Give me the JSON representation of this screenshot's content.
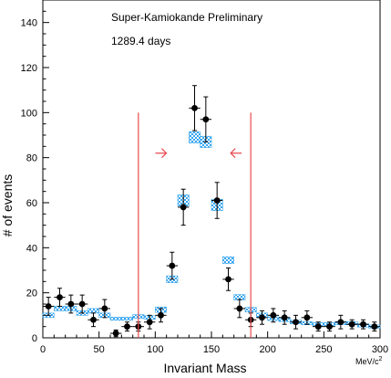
{
  "chart_data": {
    "type": "scatter",
    "title": "",
    "annotations": {
      "experiment": "Super-Kamiokande Preliminary",
      "exposure": "1289.4 days"
    },
    "xlabel": "Invariant Mass",
    "xunit_main": "MeV/c",
    "xunit_sup": "2",
    "ylabel": "# of events",
    "xlim": [
      0,
      300
    ],
    "ylim": [
      0,
      150
    ],
    "xticks": [
      0,
      50,
      100,
      150,
      200,
      250,
      300
    ],
    "yticks": [
      0,
      20,
      40,
      60,
      80,
      100,
      120,
      140
    ],
    "grid": false,
    "selection_window": [
      85,
      185
    ],
    "arrow_color": "#e8494e",
    "data_color": "#000000",
    "mc_color": "#37a6f0",
    "series": [
      {
        "kind": "data",
        "x_halfwidth": 5,
        "points": [
          {
            "x": 5,
            "y": 14,
            "err": 4
          },
          {
            "x": 15,
            "y": 18,
            "err": 4
          },
          {
            "x": 25,
            "y": 15,
            "err": 4
          },
          {
            "x": 35,
            "y": 15,
            "err": 4
          },
          {
            "x": 45,
            "y": 8,
            "err": 3
          },
          {
            "x": 55,
            "y": 13,
            "err": 4
          },
          {
            "x": 65,
            "y": 2,
            "err": 1.5
          },
          {
            "x": 75,
            "y": 5,
            "err": 2
          },
          {
            "x": 85,
            "y": 5,
            "err": 2
          },
          {
            "x": 95,
            "y": 7,
            "err": 3
          },
          {
            "x": 105,
            "y": 10,
            "err": 3
          },
          {
            "x": 115,
            "y": 32,
            "err": 6
          },
          {
            "x": 125,
            "y": 58,
            "err": 8
          },
          {
            "x": 135,
            "y": 102,
            "err": 10
          },
          {
            "x": 145,
            "y": 97,
            "err": 10
          },
          {
            "x": 155,
            "y": 61,
            "err": 8
          },
          {
            "x": 165,
            "y": 26,
            "err": 5
          },
          {
            "x": 175,
            "y": 13,
            "err": 4
          },
          {
            "x": 185,
            "y": 8,
            "err": 3
          },
          {
            "x": 195,
            "y": 9,
            "err": 3
          },
          {
            "x": 205,
            "y": 10,
            "err": 3
          },
          {
            "x": 215,
            "y": 9,
            "err": 3
          },
          {
            "x": 225,
            "y": 7,
            "err": 3
          },
          {
            "x": 235,
            "y": 9,
            "err": 3
          },
          {
            "x": 245,
            "y": 5,
            "err": 2
          },
          {
            "x": 255,
            "y": 5,
            "err": 2
          },
          {
            "x": 265,
            "y": 7,
            "err": 3
          },
          {
            "x": 275,
            "y": 6,
            "err": 2
          },
          {
            "x": 285,
            "y": 6,
            "err": 2
          },
          {
            "x": 295,
            "y": 5,
            "err": 2
          }
        ]
      },
      {
        "kind": "mc",
        "x_halfwidth": 5,
        "points": [
          {
            "x": 5,
            "y": 10,
            "err": 1
          },
          {
            "x": 15,
            "y": 13,
            "err": 1
          },
          {
            "x": 25,
            "y": 13,
            "err": 1
          },
          {
            "x": 35,
            "y": 11,
            "err": 1
          },
          {
            "x": 45,
            "y": 12,
            "err": 1
          },
          {
            "x": 55,
            "y": 10,
            "err": 1
          },
          {
            "x": 65,
            "y": 8.5,
            "err": 0.7
          },
          {
            "x": 75,
            "y": 8.5,
            "err": 0.7
          },
          {
            "x": 85,
            "y": 9.5,
            "err": 0.8
          },
          {
            "x": 95,
            "y": 9,
            "err": 0.8
          },
          {
            "x": 105,
            "y": 12.5,
            "err": 1.2
          },
          {
            "x": 115,
            "y": 26,
            "err": 1.5
          },
          {
            "x": 125,
            "y": 61,
            "err": 2.5
          },
          {
            "x": 135,
            "y": 89,
            "err": 2.5
          },
          {
            "x": 145,
            "y": 87,
            "err": 2.5
          },
          {
            "x": 155,
            "y": 59,
            "err": 2.5
          },
          {
            "x": 165,
            "y": 34.5,
            "err": 1.5
          },
          {
            "x": 175,
            "y": 18,
            "err": 1.2
          },
          {
            "x": 185,
            "y": 12.5,
            "err": 1
          },
          {
            "x": 195,
            "y": 10,
            "err": 1
          },
          {
            "x": 205,
            "y": 8.5,
            "err": 0.8
          },
          {
            "x": 215,
            "y": 8,
            "err": 0.8
          },
          {
            "x": 225,
            "y": 7,
            "err": 0.8
          },
          {
            "x": 235,
            "y": 6.5,
            "err": 0.7
          },
          {
            "x": 245,
            "y": 6,
            "err": 0.7
          },
          {
            "x": 255,
            "y": 6,
            "err": 0.7
          },
          {
            "x": 265,
            "y": 6.5,
            "err": 0.7
          },
          {
            "x": 275,
            "y": 6.5,
            "err": 0.7
          },
          {
            "x": 285,
            "y": 5.5,
            "err": 0.7
          },
          {
            "x": 295,
            "y": 5,
            "err": 0.7
          }
        ]
      }
    ],
    "arrows": [
      {
        "x": 105,
        "y": 82,
        "direction": "right"
      },
      {
        "x": 172,
        "y": 82,
        "direction": "left"
      }
    ]
  }
}
